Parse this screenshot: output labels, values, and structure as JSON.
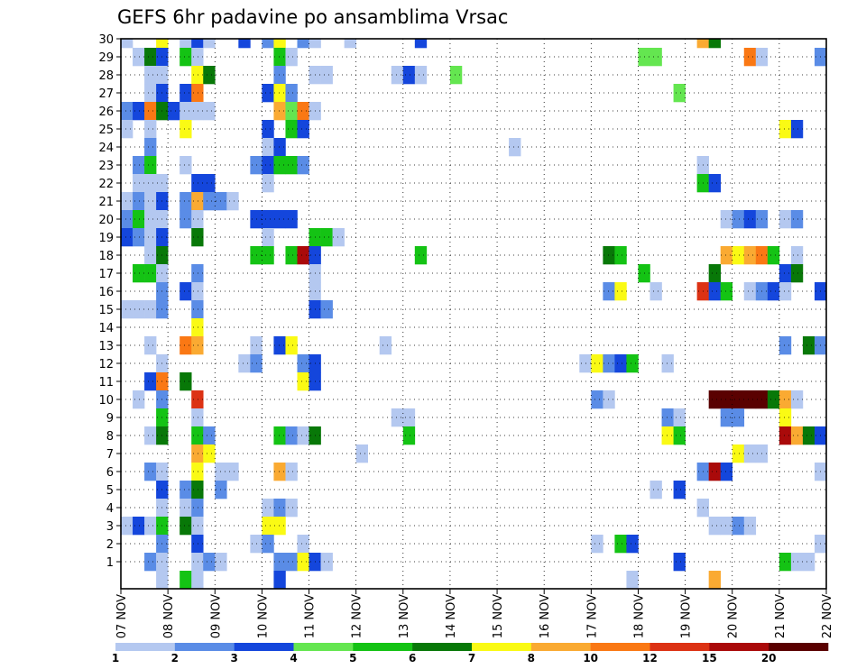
{
  "chart_data": {
    "type": "heatmap",
    "title": "GEFS 6hr padavine po ansamblima Vrsac",
    "xlabel": "",
    "ylabel": "",
    "x_tick_labels": [
      "07 NOV",
      "08 NOV",
      "09 NOV",
      "10 NOV",
      "11 NOV",
      "12 NOV",
      "13 NOV",
      "14 NOV",
      "15 NOV",
      "16 NOV",
      "17 NOV",
      "18 NOV",
      "19 NOV",
      "20 NOV",
      "21 NOV",
      "22 NOV"
    ],
    "y_tick_labels": [
      "1",
      "2",
      "3",
      "4",
      "5",
      "6",
      "7",
      "8",
      "9",
      "10",
      "11",
      "12",
      "13",
      "14",
      "15",
      "16",
      "17",
      "18",
      "19",
      "20",
      "21",
      "22",
      "23",
      "24",
      "25",
      "26",
      "27",
      "28",
      "29",
      "30"
    ],
    "x_range_6h_steps": [
      0,
      60
    ],
    "y_range_members": [
      0,
      30
    ],
    "grid": true,
    "legend": {
      "position": "bottom",
      "labels": [
        "1",
        "2",
        "3",
        "4",
        "5",
        "6",
        "7",
        "8",
        "10",
        "12",
        "15",
        "20"
      ],
      "colors": [
        "#b4c8f0",
        "#5a8ce6",
        "#1446dc",
        "#64e650",
        "#14c314",
        "#087808",
        "#fafa14",
        "#faaa32",
        "#fa7814",
        "#dc3214",
        "#aa0a0a",
        "#5a0000"
      ]
    },
    "cells": [
      {
        "member": 30,
        "steps": [
          [
            0,
            0
          ],
          [
            3,
            6
          ],
          [
            5,
            0
          ],
          [
            6,
            2
          ],
          [
            7,
            0
          ],
          [
            10,
            2
          ],
          [
            12,
            1
          ],
          [
            13,
            6
          ],
          [
            15,
            1
          ],
          [
            16,
            0
          ],
          [
            19,
            0
          ],
          [
            25,
            2
          ],
          [
            49,
            7
          ],
          [
            50,
            5
          ]
        ]
      },
      {
        "member": 29,
        "steps": [
          [
            1,
            0
          ],
          [
            2,
            5
          ],
          [
            3,
            2
          ],
          [
            5,
            4
          ],
          [
            6,
            0
          ],
          [
            13,
            4
          ],
          [
            14,
            0
          ],
          [
            44,
            3
          ],
          [
            45,
            3
          ],
          [
            53,
            8
          ],
          [
            54,
            0
          ],
          [
            59,
            1
          ]
        ]
      },
      {
        "member": 28,
        "steps": [
          [
            2,
            0
          ],
          [
            3,
            0
          ],
          [
            6,
            6
          ],
          [
            7,
            5
          ],
          [
            13,
            1
          ],
          [
            16,
            0
          ],
          [
            17,
            0
          ],
          [
            23,
            0
          ],
          [
            24,
            2
          ],
          [
            25,
            0
          ],
          [
            28,
            3
          ]
        ]
      },
      {
        "member": 27,
        "steps": [
          [
            2,
            0
          ],
          [
            3,
            2
          ],
          [
            5,
            2
          ],
          [
            6,
            8
          ],
          [
            12,
            2
          ],
          [
            13,
            6
          ],
          [
            14,
            1
          ],
          [
            47,
            3
          ]
        ]
      },
      {
        "member": 26,
        "steps": [
          [
            0,
            1
          ],
          [
            1,
            2
          ],
          [
            2,
            8
          ],
          [
            3,
            5
          ],
          [
            4,
            2
          ],
          [
            5,
            0
          ],
          [
            6,
            0
          ],
          [
            7,
            0
          ],
          [
            13,
            7
          ],
          [
            14,
            3
          ],
          [
            15,
            8
          ],
          [
            16,
            0
          ]
        ]
      },
      {
        "member": 25,
        "steps": [
          [
            0,
            0
          ],
          [
            2,
            0
          ],
          [
            5,
            6
          ],
          [
            12,
            2
          ],
          [
            14,
            4
          ],
          [
            15,
            2
          ],
          [
            56,
            6
          ],
          [
            57,
            2
          ]
        ]
      },
      {
        "member": 24,
        "steps": [
          [
            2,
            1
          ],
          [
            12,
            0
          ],
          [
            13,
            2
          ],
          [
            33,
            0
          ]
        ]
      },
      {
        "member": 23,
        "steps": [
          [
            1,
            1
          ],
          [
            2,
            4
          ],
          [
            5,
            0
          ],
          [
            11,
            1
          ],
          [
            12,
            2
          ],
          [
            13,
            4
          ],
          [
            14,
            4
          ],
          [
            15,
            1
          ],
          [
            49,
            0
          ]
        ]
      },
      {
        "member": 22,
        "steps": [
          [
            1,
            0
          ],
          [
            2,
            0
          ],
          [
            3,
            0
          ],
          [
            6,
            2
          ],
          [
            7,
            2
          ],
          [
            12,
            0
          ],
          [
            49,
            4
          ],
          [
            50,
            2
          ]
        ]
      },
      {
        "member": 21,
        "steps": [
          [
            0,
            0
          ],
          [
            1,
            1
          ],
          [
            2,
            0
          ],
          [
            3,
            2
          ],
          [
            5,
            1
          ],
          [
            6,
            7
          ],
          [
            7,
            1
          ],
          [
            8,
            1
          ],
          [
            9,
            0
          ]
        ]
      },
      {
        "member": 20,
        "steps": [
          [
            0,
            1
          ],
          [
            1,
            4
          ],
          [
            2,
            0
          ],
          [
            3,
            0
          ],
          [
            5,
            1
          ],
          [
            6,
            0
          ],
          [
            11,
            2
          ],
          [
            12,
            2
          ],
          [
            13,
            2
          ],
          [
            14,
            2
          ],
          [
            51,
            0
          ],
          [
            52,
            1
          ],
          [
            53,
            2
          ],
          [
            54,
            1
          ],
          [
            56,
            0
          ],
          [
            57,
            1
          ]
        ]
      },
      {
        "member": 19,
        "steps": [
          [
            0,
            2
          ],
          [
            1,
            1
          ],
          [
            2,
            0
          ],
          [
            3,
            2
          ],
          [
            6,
            5
          ],
          [
            12,
            0
          ],
          [
            16,
            4
          ],
          [
            17,
            4
          ],
          [
            18,
            0
          ]
        ]
      },
      {
        "member": 18,
        "steps": [
          [
            2,
            0
          ],
          [
            3,
            5
          ],
          [
            11,
            4
          ],
          [
            12,
            4
          ],
          [
            14,
            4
          ],
          [
            15,
            10
          ],
          [
            16,
            2
          ],
          [
            25,
            4
          ],
          [
            41,
            5
          ],
          [
            42,
            4
          ],
          [
            51,
            7
          ],
          [
            52,
            6
          ],
          [
            53,
            7
          ],
          [
            54,
            8
          ],
          [
            55,
            4
          ],
          [
            57,
            0
          ]
        ]
      },
      {
        "member": 17,
        "steps": [
          [
            1,
            4
          ],
          [
            2,
            4
          ],
          [
            3,
            0
          ],
          [
            6,
            1
          ],
          [
            16,
            0
          ],
          [
            44,
            4
          ],
          [
            50,
            5
          ],
          [
            56,
            2
          ],
          [
            57,
            5
          ]
        ]
      },
      {
        "member": 16,
        "steps": [
          [
            3,
            1
          ],
          [
            5,
            2
          ],
          [
            6,
            0
          ],
          [
            16,
            0
          ],
          [
            41,
            1
          ],
          [
            42,
            6
          ],
          [
            45,
            0
          ],
          [
            49,
            9
          ],
          [
            50,
            2
          ],
          [
            51,
            4
          ],
          [
            53,
            0
          ],
          [
            54,
            1
          ],
          [
            55,
            2
          ],
          [
            56,
            0
          ],
          [
            59,
            2
          ]
        ]
      },
      {
        "member": 15,
        "steps": [
          [
            0,
            0
          ],
          [
            1,
            0
          ],
          [
            2,
            0
          ],
          [
            3,
            1
          ],
          [
            6,
            1
          ],
          [
            16,
            2
          ],
          [
            17,
            1
          ]
        ]
      },
      {
        "member": 14,
        "steps": [
          [
            6,
            6
          ]
        ]
      },
      {
        "member": 13,
        "steps": [
          [
            2,
            0
          ],
          [
            5,
            8
          ],
          [
            6,
            7
          ],
          [
            11,
            0
          ],
          [
            13,
            2
          ],
          [
            14,
            6
          ],
          [
            22,
            0
          ],
          [
            56,
            1
          ],
          [
            58,
            5
          ],
          [
            59,
            1
          ]
        ]
      },
      {
        "member": 12,
        "steps": [
          [
            3,
            0
          ],
          [
            10,
            0
          ],
          [
            11,
            1
          ],
          [
            15,
            1
          ],
          [
            16,
            2
          ],
          [
            39,
            0
          ],
          [
            40,
            6
          ],
          [
            41,
            1
          ],
          [
            42,
            2
          ],
          [
            43,
            4
          ],
          [
            46,
            0
          ]
        ]
      },
      {
        "member": 11,
        "steps": [
          [
            2,
            2
          ],
          [
            3,
            8
          ],
          [
            5,
            5
          ],
          [
            15,
            6
          ],
          [
            16,
            2
          ]
        ]
      },
      {
        "member": 10,
        "steps": [
          [
            1,
            0
          ],
          [
            3,
            1
          ],
          [
            6,
            9
          ],
          [
            40,
            1
          ],
          [
            41,
            0
          ],
          [
            50,
            11
          ],
          [
            51,
            11
          ],
          [
            52,
            11
          ],
          [
            53,
            11
          ],
          [
            54,
            11
          ],
          [
            55,
            5
          ],
          [
            56,
            7
          ],
          [
            57,
            0
          ]
        ]
      },
      {
        "member": 9,
        "steps": [
          [
            3,
            4
          ],
          [
            6,
            0
          ],
          [
            23,
            0
          ],
          [
            24,
            0
          ],
          [
            46,
            1
          ],
          [
            47,
            0
          ],
          [
            51,
            1
          ],
          [
            52,
            1
          ],
          [
            56,
            6
          ]
        ]
      },
      {
        "member": 8,
        "steps": [
          [
            2,
            0
          ],
          [
            3,
            5
          ],
          [
            6,
            4
          ],
          [
            7,
            1
          ],
          [
            13,
            4
          ],
          [
            14,
            1
          ],
          [
            15,
            0
          ],
          [
            16,
            5
          ],
          [
            24,
            4
          ],
          [
            46,
            6
          ],
          [
            47,
            4
          ],
          [
            56,
            10
          ],
          [
            57,
            7
          ],
          [
            58,
            5
          ],
          [
            59,
            2
          ]
        ]
      },
      {
        "member": 7,
        "steps": [
          [
            6,
            7
          ],
          [
            7,
            6
          ],
          [
            20,
            0
          ],
          [
            52,
            6
          ],
          [
            53,
            0
          ],
          [
            54,
            0
          ]
        ]
      },
      {
        "member": 6,
        "steps": [
          [
            2,
            1
          ],
          [
            3,
            0
          ],
          [
            6,
            6
          ],
          [
            8,
            0
          ],
          [
            9,
            0
          ],
          [
            13,
            7
          ],
          [
            14,
            0
          ],
          [
            49,
            1
          ],
          [
            50,
            10
          ],
          [
            51,
            2
          ],
          [
            59,
            0
          ]
        ]
      },
      {
        "member": 5,
        "steps": [
          [
            3,
            2
          ],
          [
            5,
            1
          ],
          [
            6,
            5
          ],
          [
            8,
            1
          ],
          [
            45,
            0
          ],
          [
            47,
            2
          ]
        ]
      },
      {
        "member": 4,
        "steps": [
          [
            3,
            0
          ],
          [
            5,
            0
          ],
          [
            6,
            1
          ],
          [
            12,
            0
          ],
          [
            13,
            1
          ],
          [
            14,
            0
          ],
          [
            49,
            0
          ]
        ]
      },
      {
        "member": 3,
        "steps": [
          [
            0,
            0
          ],
          [
            1,
            2
          ],
          [
            2,
            0
          ],
          [
            3,
            4
          ],
          [
            5,
            5
          ],
          [
            6,
            0
          ],
          [
            12,
            6
          ],
          [
            13,
            6
          ],
          [
            50,
            0
          ],
          [
            51,
            0
          ],
          [
            52,
            1
          ],
          [
            53,
            0
          ]
        ]
      },
      {
        "member": 2,
        "steps": [
          [
            3,
            1
          ],
          [
            6,
            2
          ],
          [
            11,
            0
          ],
          [
            12,
            1
          ],
          [
            15,
            0
          ],
          [
            40,
            0
          ],
          [
            42,
            4
          ],
          [
            43,
            2
          ],
          [
            59,
            0
          ]
        ]
      },
      {
        "member": 1,
        "steps": [
          [
            2,
            1
          ],
          [
            3,
            0
          ],
          [
            6,
            0
          ],
          [
            7,
            1
          ],
          [
            8,
            0
          ],
          [
            13,
            1
          ],
          [
            14,
            1
          ],
          [
            15,
            6
          ],
          [
            16,
            2
          ],
          [
            17,
            0
          ],
          [
            47,
            2
          ],
          [
            56,
            4
          ],
          [
            57,
            0
          ],
          [
            58,
            0
          ]
        ]
      },
      {
        "member": 0,
        "steps": [
          [
            3,
            0
          ],
          [
            5,
            4
          ],
          [
            6,
            0
          ],
          [
            13,
            2
          ],
          [
            43,
            0
          ],
          [
            50,
            7
          ]
        ]
      }
    ]
  }
}
